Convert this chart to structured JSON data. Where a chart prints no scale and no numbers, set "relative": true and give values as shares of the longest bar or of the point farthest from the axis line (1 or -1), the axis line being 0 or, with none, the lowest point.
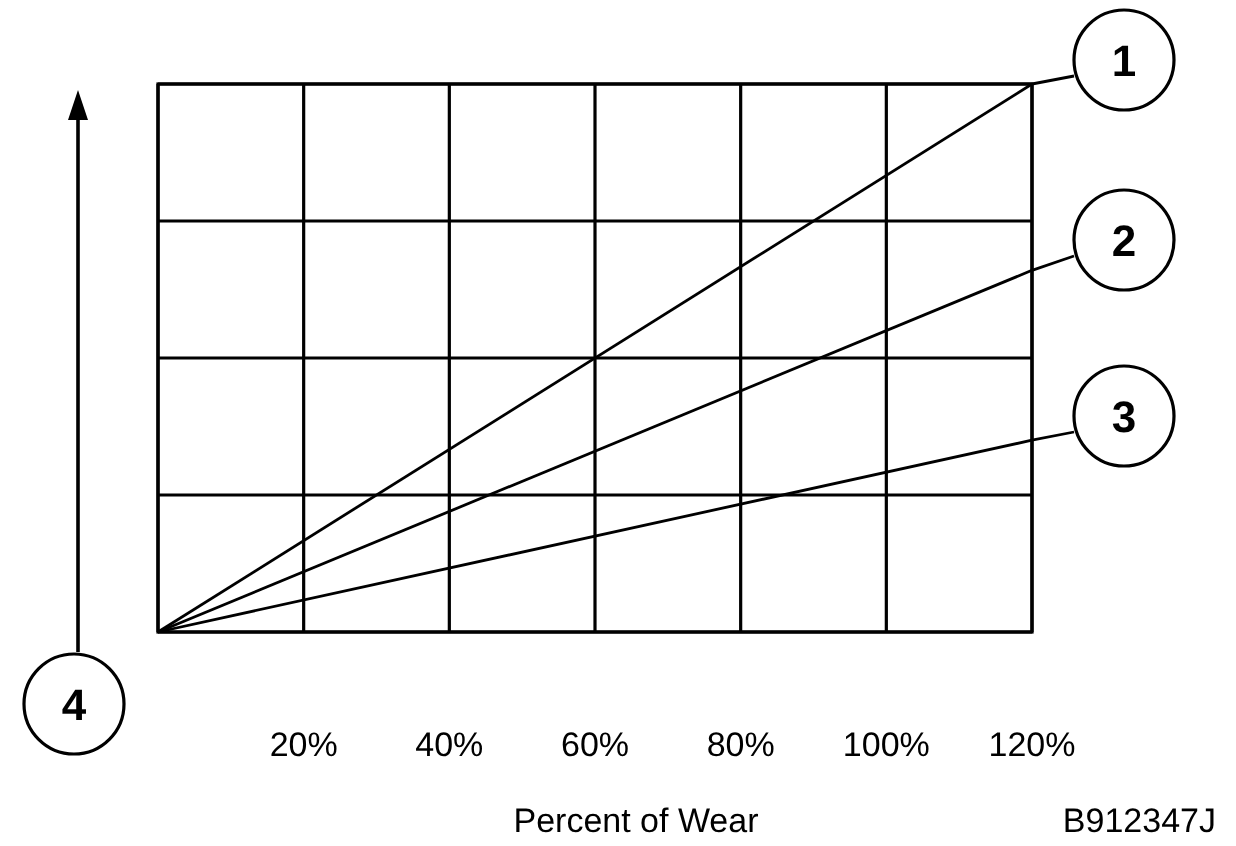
{
  "chart_data": {
    "type": "line",
    "relative": true,
    "xlabel": "Percent of Wear",
    "x": [
      0,
      120
    ],
    "xlim": [
      0,
      120
    ],
    "xticks": [
      {
        "value": 0,
        "label": null
      },
      {
        "value": 20,
        "label": "20%"
      },
      {
        "value": 40,
        "label": "40%"
      },
      {
        "value": 60,
        "label": "60%"
      },
      {
        "value": 80,
        "label": "80%"
      },
      {
        "value": 100,
        "label": "100%"
      },
      {
        "value": 120,
        "label": "120%"
      }
    ],
    "series": [
      {
        "name": "1",
        "color": "#000000",
        "values": [
          0,
          1
        ]
      },
      {
        "name": "2",
        "color": "#000000",
        "values": [
          0,
          0.66
        ]
      },
      {
        "name": "3",
        "color": "#000000",
        "values": [
          0,
          0.35
        ]
      }
    ],
    "annotations": [
      "4",
      "B912347J"
    ],
    "grid": true,
    "legend": "right",
    "marker": "none",
    "line_style": "solid"
  }
}
